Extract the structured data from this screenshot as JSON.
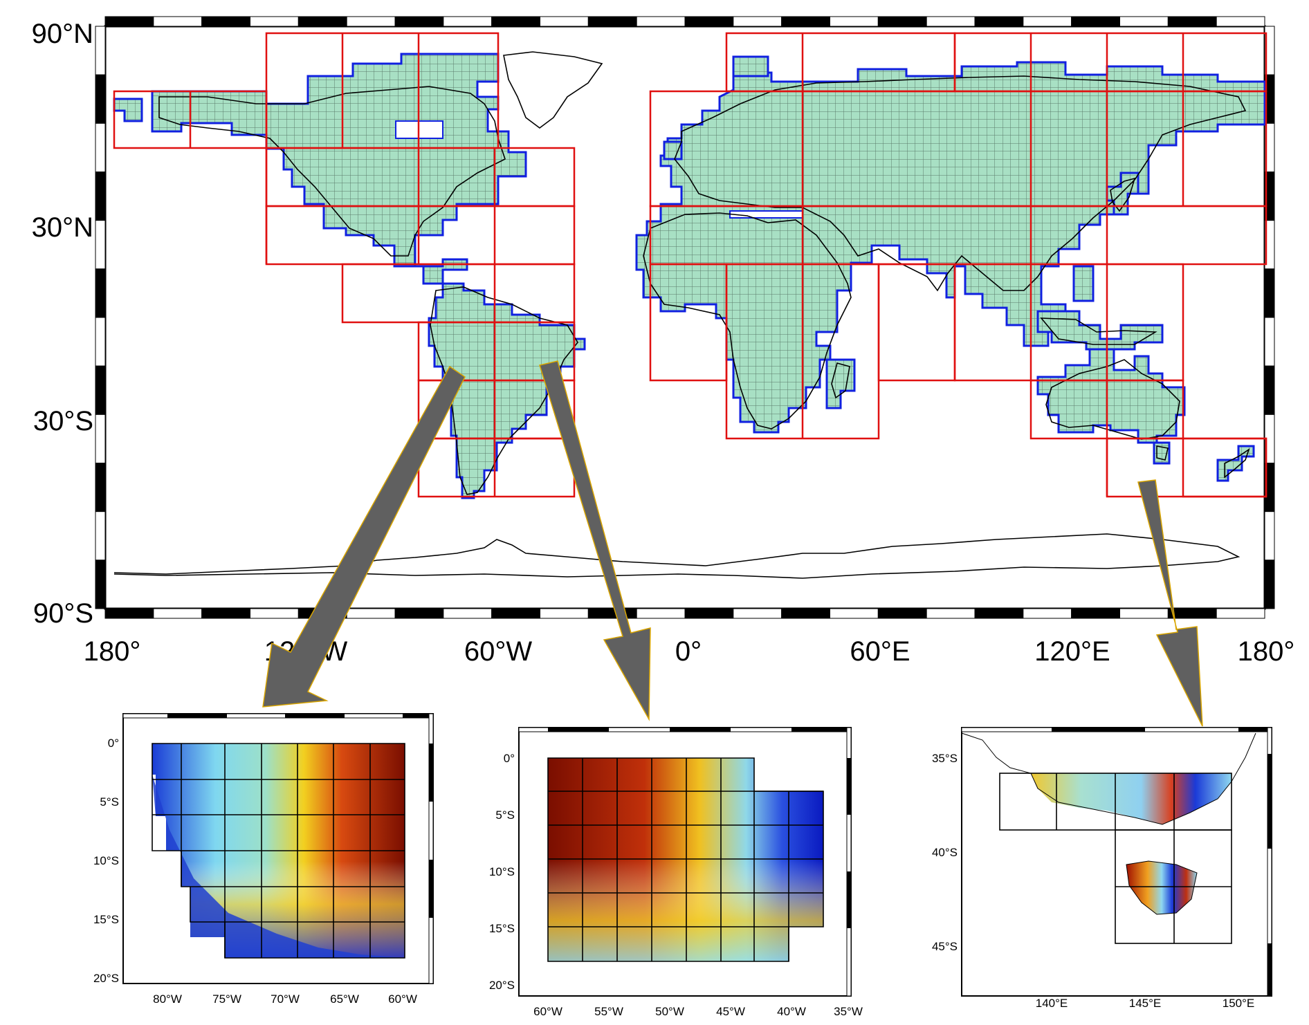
{
  "main_map": {
    "lat_labels": [
      "90°N",
      "30°N",
      "30°S",
      "90°S"
    ],
    "lon_labels": [
      "180°",
      "120°W",
      "60°W",
      "0°",
      "60°E",
      "120°E",
      "180°"
    ],
    "colors": {
      "land_fill": "#a8e0c4",
      "grid_line": "#5a7a6a",
      "tile_outline": "#e01010",
      "mask_outline": "#1020e0",
      "coast": "#000000",
      "arrow_fill": "#606060",
      "arrow_edge": "#d9a500"
    }
  },
  "insets": [
    {
      "id": "andes",
      "lat_labels": [
        "0°",
        "5°S",
        "10°S",
        "15°S",
        "20°S"
      ],
      "lon_labels": [
        "80°W",
        "75°W",
        "70°W",
        "65°W",
        "60°W"
      ]
    },
    {
      "id": "brazil",
      "lat_labels": [
        "0°",
        "5°S",
        "10°S",
        "15°S",
        "20°S"
      ],
      "lon_labels": [
        "60°W",
        "55°W",
        "50°W",
        "45°W",
        "40°W",
        "35°W"
      ]
    },
    {
      "id": "se-australia",
      "lat_labels": [
        "35°S",
        "40°S",
        "45°S"
      ],
      "lon_labels": [
        "140°E",
        "145°E",
        "150°E"
      ]
    }
  ]
}
